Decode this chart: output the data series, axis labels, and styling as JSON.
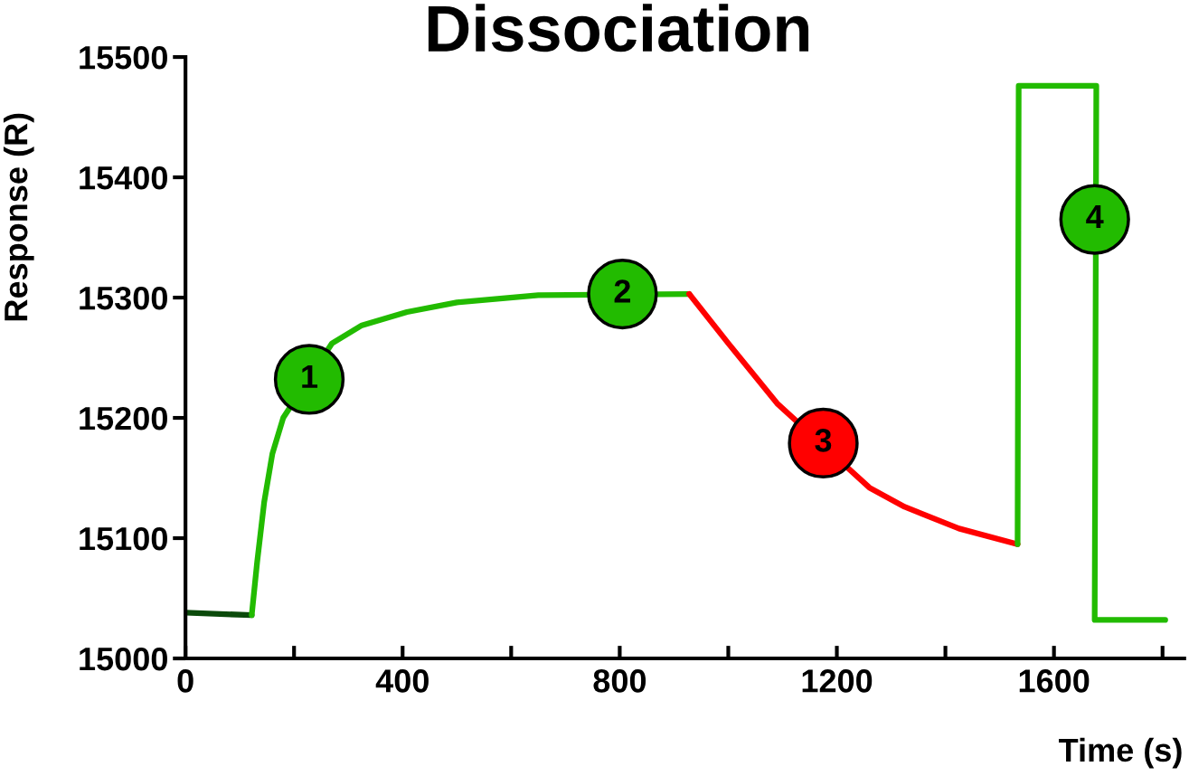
{
  "chart_data": {
    "type": "line",
    "title": "Dissociation",
    "xlabel": "Time (s)",
    "ylabel": "Response (R)",
    "series": [
      {
        "color": "#0b4a0b",
        "x": [
          0,
          122
        ],
        "values": [
          15038,
          15036
        ]
      },
      {
        "color": "#22bb00",
        "x": [
          122,
          132,
          145,
          160,
          180,
          270,
          325,
          408,
          500,
          650,
          928
        ],
        "values": [
          15036,
          15080,
          15130,
          15170,
          15200,
          15262,
          15277,
          15288,
          15296,
          15302,
          15303
        ]
      },
      {
        "color": "#ff0000",
        "x": [
          928,
          1000,
          1090,
          1260,
          1325,
          1425,
          1533
        ],
        "values": [
          15303,
          15262,
          15212,
          15142,
          15126,
          15108,
          15095
        ]
      },
      {
        "color": "#22bb00",
        "x": [
          1533,
          1535,
          1678,
          1675,
          1805
        ],
        "values": [
          15095,
          15476,
          15476,
          15032,
          15032
        ]
      }
    ],
    "annotations": [
      {
        "text": "1",
        "x": 228,
        "y": 15232
      },
      {
        "text": "2",
        "x": 805,
        "y": 15303
      },
      {
        "text": "3",
        "x": 1175,
        "y": 15179
      },
      {
        "text": "4",
        "x": 1675,
        "y": 15365
      }
    ],
    "xlim": [
      0,
      1840
    ],
    "ylim": [
      15000,
      15500
    ],
    "xticks": [
      0,
      {
        "value": 200,
        "label": null
      },
      400,
      {
        "value": 600,
        "label": null
      },
      800,
      {
        "value": 1000,
        "label": null
      },
      1200,
      {
        "value": 1400,
        "label": null
      },
      1600,
      {
        "value": 1800,
        "label": null
      }
    ],
    "yticks": [
      15000,
      15100,
      15200,
      15300,
      15400,
      15500
    ],
    "grid": false,
    "legend": false,
    "marker": "none",
    "line_style": "solid"
  }
}
